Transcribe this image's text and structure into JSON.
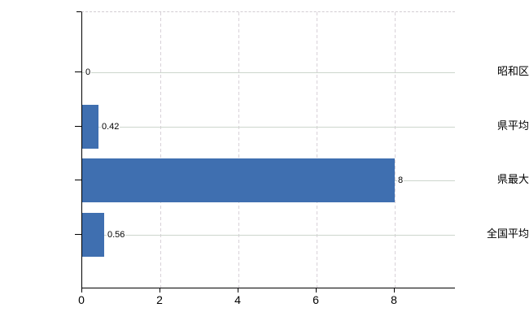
{
  "chart_data": {
    "type": "bar",
    "orientation": "horizontal",
    "title": "",
    "xlabel": "",
    "ylabel": "",
    "categories": [
      "昭和区",
      "県平均",
      "県最大",
      "全国平均"
    ],
    "values": [
      0,
      0.42,
      8,
      0.56
    ],
    "data_labels": [
      "0",
      "0.42",
      "8",
      "0.56"
    ],
    "x_ticks": [
      "0",
      "2",
      "4",
      "6",
      "8"
    ],
    "x_tick_values": [
      0,
      2,
      4,
      6,
      8
    ],
    "xlim": [
      0,
      9.54
    ],
    "grid": true,
    "legend": false,
    "bar_color": "#3f6fb0",
    "h_grid_color": "#ccd6cc",
    "v_grid_color": "#d8d1d8",
    "axis_color": "#000000"
  }
}
